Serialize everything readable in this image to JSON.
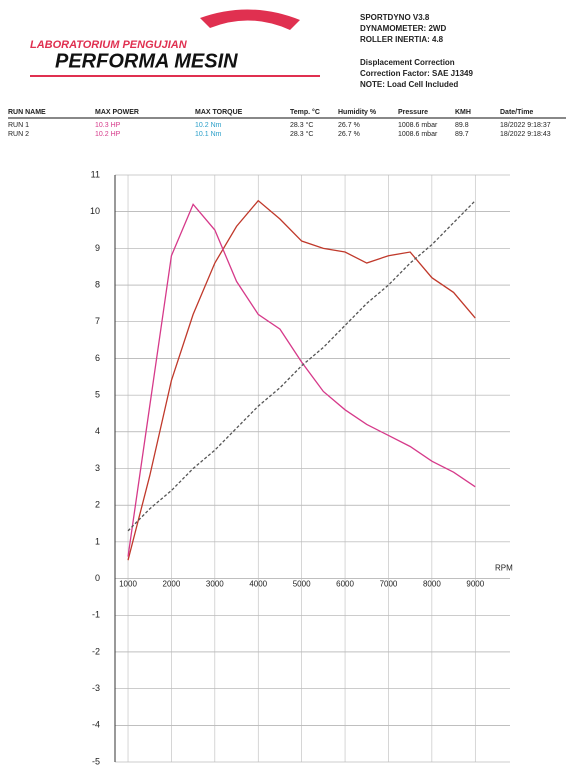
{
  "header": {
    "lab": "LABORATORIUM PENGUJIAN",
    "brand": "PERFORMA MESIN",
    "info": [
      "SPORTDYNO V3.8",
      "DYNAMOMETER: 2WD",
      "ROLLER INERTIA: 4.8",
      "Displacement Correction",
      "Correction Factor: SAE J1349",
      "NOTE: Load Cell Included"
    ]
  },
  "table": {
    "columns": [
      "RUN NAME",
      "MAX POWER",
      "MAX TORQUE",
      "Temp. °C",
      "Humidity %",
      "Pressure",
      "KMH",
      "Date/Time"
    ],
    "rows": [
      [
        "RUN 1",
        "10.3 HP",
        "10.2 Nm",
        "28.3 °C",
        "26.7 %",
        "1008.6 mbar",
        "89.8",
        "18/2022 9:18:37"
      ],
      [
        "RUN 2",
        "10.2 HP",
        "10.1 Nm",
        "28.3 °C",
        "26.7 %",
        "1008.6 mbar",
        "89.7",
        "18/2022 9:18:43"
      ]
    ]
  },
  "chart_data": {
    "type": "line",
    "xlabel": "RPM",
    "x": [
      1000,
      1500,
      2000,
      2500,
      3000,
      3500,
      4000,
      4500,
      5000,
      5500,
      6000,
      6500,
      7000,
      7500,
      8000,
      8500,
      9000
    ],
    "series": [
      {
        "color": "#c0392b",
        "values": [
          0.5,
          2.8,
          5.4,
          7.2,
          8.6,
          9.6,
          10.3,
          9.8,
          9.2,
          9.0,
          8.9,
          8.6,
          8.8,
          8.9,
          8.2,
          7.8,
          7.1
        ]
      },
      {
        "color": "#d63a8a",
        "values": [
          0.6,
          4.7,
          8.8,
          10.2,
          9.5,
          8.1,
          7.2,
          6.8,
          5.9,
          5.1,
          4.6,
          4.2,
          3.9,
          3.6,
          3.2,
          2.9,
          2.5
        ]
      },
      {
        "color": "#555555",
        "values": [
          1.3,
          1.9,
          2.4,
          3.0,
          3.5,
          4.1,
          4.7,
          5.2,
          5.8,
          6.3,
          6.9,
          7.5,
          8.0,
          8.6,
          9.1,
          9.7,
          10.3
        ]
      }
    ],
    "xlim": [
      700,
      9800
    ],
    "xticks": [
      1000,
      2000,
      3000,
      4000,
      5000,
      6000,
      7000,
      8000,
      9000
    ],
    "ylim": [
      -5,
      11
    ],
    "yticks": [
      -5,
      -4,
      -3,
      -2,
      -1,
      0,
      1,
      2,
      3,
      4,
      5,
      6,
      7,
      8,
      9,
      10,
      11
    ],
    "grid": true
  }
}
